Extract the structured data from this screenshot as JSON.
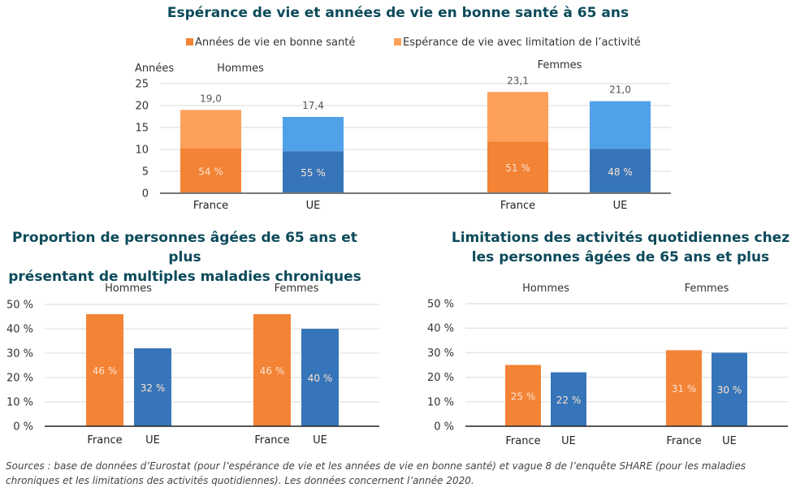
{
  "colors": {
    "france_dark": "#f38335",
    "france_light": "#fda05a",
    "ue_dark": "#3675b9",
    "ue_light": "#4fa1e8",
    "title": "#0b4a5a"
  },
  "chart_data": [
    {
      "type": "bar",
      "stacked": true,
      "title": "Espérance de vie et années de vie en bonne santé à 65 ans",
      "ylabel": "Années",
      "ylim": [
        0,
        25
      ],
      "yticks": [
        "0",
        "5",
        "10",
        "15",
        "20",
        "25"
      ],
      "ytick_values": [
        0,
        5,
        10,
        15,
        20,
        25
      ],
      "legend": [
        "Années de vie en bonne santé",
        "Espérance de vie avec limitation de l’activité"
      ],
      "legend_position": "top",
      "grid": true,
      "groups": [
        {
          "name": "Hommes",
          "bars": [
            {
              "category": "France",
              "total": 19.0,
              "total_label": "19,0",
              "healthy_share": 0.54,
              "healthy_label": "54 %",
              "palette": "france"
            },
            {
              "category": "UE",
              "total": 17.4,
              "total_label": "17,4",
              "healthy_share": 0.55,
              "healthy_label": "55 %",
              "palette": "ue"
            }
          ]
        },
        {
          "name": "Femmes",
          "bars": [
            {
              "category": "France",
              "total": 23.1,
              "total_label": "23,1",
              "healthy_share": 0.51,
              "healthy_label": "51 %",
              "palette": "france"
            },
            {
              "category": "UE",
              "total": 21.0,
              "total_label": "21,0",
              "healthy_share": 0.48,
              "healthy_label": "48 %",
              "palette": "ue"
            }
          ]
        }
      ]
    },
    {
      "type": "bar",
      "title": "Proportion de personnes âgées de 65 ans et plus présentant de multiples maladies chroniques",
      "ylim": [
        0,
        50
      ],
      "yticks": [
        "0 %",
        "10 %",
        "20 %",
        "30 %",
        "40 %",
        "50 %"
      ],
      "ytick_values": [
        0,
        10,
        20,
        30,
        40,
        50
      ],
      "grid": true,
      "groups": [
        {
          "name": "Hommes",
          "bars": [
            {
              "category": "France",
              "value": 46,
              "label": "46 %",
              "palette": "france"
            },
            {
              "category": "UE",
              "value": 32,
              "label": "32 %",
              "palette": "ue"
            }
          ]
        },
        {
          "name": "Femmes",
          "bars": [
            {
              "category": "France",
              "value": 46,
              "label": "46 %",
              "palette": "france"
            },
            {
              "category": "UE",
              "value": 40,
              "label": "40 %",
              "palette": "ue"
            }
          ]
        }
      ]
    },
    {
      "type": "bar",
      "title": "Limitations des activités quotidiennes chez les personnes âgées de 65 ans et plus",
      "ylim": [
        0,
        50
      ],
      "yticks": [
        "0 %",
        "10 %",
        "20 %",
        "30 %",
        "40 %",
        "50 %"
      ],
      "ytick_values": [
        0,
        10,
        20,
        30,
        40,
        50
      ],
      "grid": true,
      "groups": [
        {
          "name": "Hommes",
          "bars": [
            {
              "category": "France",
              "value": 25,
              "label": "25 %",
              "palette": "france"
            },
            {
              "category": "UE",
              "value": 22,
              "label": "22 %",
              "palette": "ue"
            }
          ]
        },
        {
          "name": "Femmes",
          "bars": [
            {
              "category": "France",
              "value": 31,
              "label": "31 %",
              "palette": "france"
            },
            {
              "category": "UE",
              "value": 30,
              "label": "30 %",
              "palette": "ue"
            }
          ]
        }
      ]
    }
  ],
  "titles": {
    "main": "Espérance de vie et années de vie en bonne santé à 65 ans",
    "left_line1": "Proportion de personnes âgées de 65 ans et plus",
    "left_line2": "présentant de multiples maladies chroniques",
    "right_line1": "Limitations des activités quotidiennes chez",
    "right_line2": "les personnes âgées de 65 ans et plus"
  },
  "sources": "Sources : base de données d’Eurostat (pour l’espérance de vie et les années de vie en bonne santé) et vague 8 de l’enquête SHARE (pour les maladies chroniques et les limitations des activités quotidiennes). Les données concernent l’année 2020."
}
